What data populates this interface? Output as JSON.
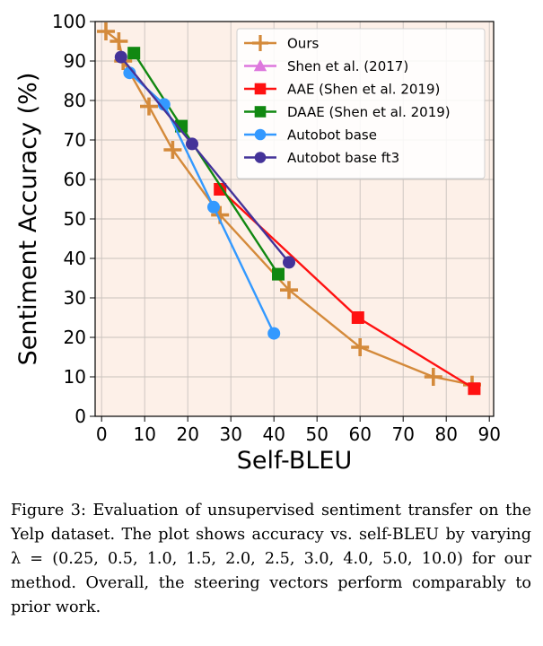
{
  "chart_data": {
    "type": "line",
    "xlabel": "Self-BLEU",
    "ylabel": "Sentiment Accuracy (%)",
    "xlim": [
      -1.5,
      91
    ],
    "ylim": [
      0,
      100
    ],
    "xticks": [
      0,
      10,
      20,
      30,
      40,
      50,
      60,
      70,
      80,
      90
    ],
    "yticks": [
      0,
      10,
      20,
      30,
      40,
      50,
      60,
      70,
      80,
      90,
      100
    ],
    "grid": true,
    "legend_position": "top-right",
    "background": "#fdf0e8",
    "series": [
      {
        "name": "Ours",
        "color": "#d48a3b",
        "marker": "plus",
        "points": [
          [
            1,
            97.5
          ],
          [
            4,
            95
          ],
          [
            5,
            90
          ],
          [
            11,
            78.5
          ],
          [
            16.5,
            67.5
          ],
          [
            27.5,
            51
          ],
          [
            43.5,
            32
          ],
          [
            60,
            17.5
          ],
          [
            77,
            10
          ],
          [
            86,
            8
          ]
        ]
      },
      {
        "name": "Shen et al. (2017)",
        "color": "#dd77dd",
        "marker": "triangle",
        "points": []
      },
      {
        "name": "AAE (Shen et al. 2019)",
        "color": "#ff1111",
        "marker": "square",
        "points": [
          [
            27.5,
            57.5
          ],
          [
            59.5,
            25
          ],
          [
            86.5,
            7
          ]
        ]
      },
      {
        "name": "DAAE (Shen et al. 2019)",
        "color": "#118811",
        "marker": "square",
        "points": [
          [
            7.5,
            92
          ],
          [
            18.5,
            73.5
          ],
          [
            41,
            36
          ]
        ]
      },
      {
        "name": "Autobot base",
        "color": "#3399ff",
        "marker": "circle",
        "points": [
          [
            6.5,
            87
          ],
          [
            14.5,
            79
          ],
          [
            26,
            53
          ],
          [
            40,
            21
          ]
        ]
      },
      {
        "name": "Autobot base ft3",
        "color": "#443399",
        "marker": "circle",
        "points": [
          [
            4.5,
            91
          ],
          [
            21,
            69
          ],
          [
            43.5,
            39
          ]
        ]
      }
    ]
  },
  "caption": "Figure 3: Evaluation of unsupervised sentiment transfer on the Yelp dataset. The plot shows accuracy vs. self-BLEU by varying λ = (0.25, 0.5, 1.0, 1.5, 2.0, 2.5, 3.0, 4.0, 5.0, 10.0) for our method.  Overall, the steering vectors perform comparably to prior work."
}
